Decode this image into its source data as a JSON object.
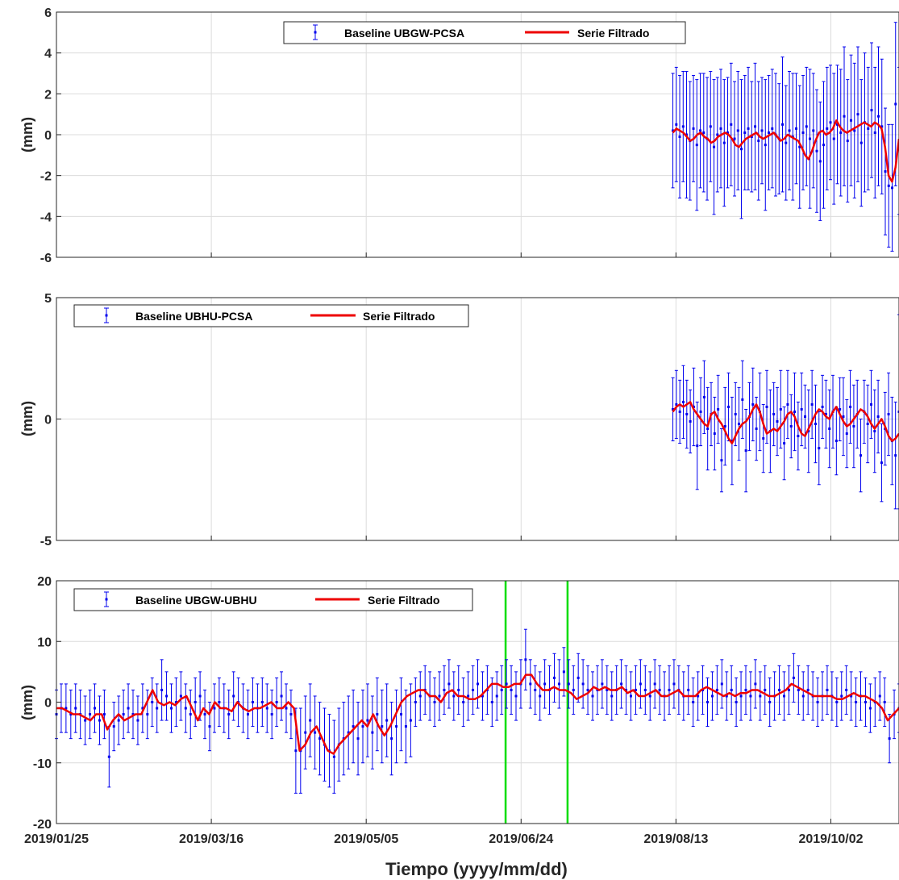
{
  "figure": {
    "xlabel": "Tiempo  (yyyy/mm/dd)"
  },
  "colors": {
    "data": "#0000ee",
    "filtered": "#ee0000",
    "marker_lines": "#00dd00",
    "grid": "#dcdcdc",
    "axes": "#262626"
  },
  "chart_data": [
    {
      "type": "line",
      "ylabel": "(mm)",
      "ylim": [
        -6,
        6
      ],
      "yticks": [
        -6,
        -4,
        -2,
        0,
        2,
        4,
        6
      ],
      "xlim": [
        "2019/01/25",
        "2019/10/24"
      ],
      "xticks": [
        "2019/01/25",
        "2019/03/16",
        "2019/05/05",
        "2019/06/24",
        "2019/08/13",
        "2019/10/02"
      ],
      "show_xticklabels": false,
      "grid": true,
      "legend": {
        "placement": "top-center",
        "entries": [
          "Baseline UBGW-PCSA",
          "Serie Filtrado"
        ]
      },
      "series": [
        {
          "name": "Baseline UBGW-PCSA",
          "kind": "errorbar",
          "x_start": "2019/08/12",
          "x_end": "2019/10/24",
          "values": [
            0.2,
            0.5,
            -0.1,
            0.4,
            0.0,
            -0.3,
            0.3,
            -0.5,
            0.2,
            0.1,
            -0.2,
            0.4,
            -0.6,
            0.0,
            0.3,
            -0.4,
            0.1,
            0.5,
            -0.2,
            0.2,
            -0.7,
            0.1,
            0.3,
            -0.1,
            0.4,
            -0.3,
            0.2,
            -0.5,
            0.1,
            0.3,
            0.0,
            -0.2,
            0.5,
            -0.4,
            0.2,
            -0.1,
            0.3,
            -0.6,
            0.1,
            0.4,
            -0.2,
            0.2,
            -0.8,
            -1.3,
            -0.5,
            0.3,
            0.6,
            -0.2,
            0.5,
            0.1,
            0.9,
            -0.3,
            0.7,
            0.2,
            1.0,
            -0.4,
            0.6,
            0.3,
            1.2,
            0.1,
            0.9,
            0.4,
            -1.8,
            -2.5,
            -2.6,
            1.5,
            -0.3
          ],
          "error": [
            2.8,
            2.8,
            3.0,
            2.7,
            3.1,
            2.9,
            2.6,
            3.2,
            2.8,
            2.9,
            3.0,
            2.7,
            3.3,
            2.8,
            2.9,
            3.1,
            2.7,
            3.0,
            2.8,
            2.9,
            3.4,
            2.8,
            3.0,
            2.7,
            3.1,
            2.9,
            2.6,
            3.2,
            2.8,
            2.9,
            3.0,
            2.7,
            3.3,
            2.8,
            2.9,
            3.1,
            2.7,
            3.0,
            2.8,
            2.9,
            3.4,
            2.8,
            3.0,
            2.9,
            3.1,
            3.0,
            2.8,
            3.2,
            2.9,
            3.1,
            3.4,
            3.0,
            3.2,
            3.3,
            3.3,
            3.1,
            3.4,
            3.0,
            3.3,
            3.2,
            3.4,
            3.3,
            3.1,
            3.0,
            3.1,
            4.0,
            3.6
          ]
        },
        {
          "name": "Serie Filtrado",
          "kind": "line",
          "x_start": "2019/08/12",
          "x_end": "2019/10/24",
          "values": [
            0.1,
            0.3,
            0.2,
            0.1,
            -0.1,
            -0.3,
            -0.2,
            0.0,
            0.1,
            -0.1,
            -0.2,
            -0.4,
            -0.3,
            -0.1,
            0.0,
            0.1,
            0.0,
            -0.2,
            -0.5,
            -0.6,
            -0.4,
            -0.2,
            -0.1,
            0.0,
            0.1,
            -0.1,
            -0.2,
            -0.1,
            0.0,
            0.1,
            -0.1,
            -0.3,
            -0.2,
            0.0,
            -0.1,
            -0.2,
            -0.3,
            -0.6,
            -1.0,
            -1.2,
            -0.8,
            -0.3,
            0.1,
            0.2,
            0.0,
            0.1,
            0.3,
            0.7,
            0.4,
            0.2,
            0.1,
            0.2,
            0.3,
            0.4,
            0.5,
            0.6,
            0.5,
            0.4,
            0.6,
            0.5,
            0.3,
            -0.6,
            -2.0,
            -2.3,
            -1.6,
            -0.2
          ]
        }
      ]
    },
    {
      "type": "line",
      "ylabel": "(mm)",
      "ylim": [
        -5,
        5
      ],
      "yticks": [
        -5,
        0,
        5
      ],
      "xlim": [
        "2019/01/25",
        "2019/10/24"
      ],
      "xticks": [
        "2019/01/25",
        "2019/03/16",
        "2019/05/05",
        "2019/06/24",
        "2019/08/13",
        "2019/10/02"
      ],
      "show_xticklabels": false,
      "grid": true,
      "legend": {
        "placement": "top-left",
        "entries": [
          "Baseline UBHU-PCSA",
          "Serie Filtrado"
        ]
      },
      "series": [
        {
          "name": "Baseline UBHU-PCSA",
          "kind": "errorbar",
          "x_start": "2019/08/12",
          "x_end": "2019/10/24",
          "values": [
            0.4,
            0.6,
            0.3,
            0.7,
            0.2,
            -0.1,
            0.5,
            -1.1,
            0.3,
            0.9,
            -0.4,
            0.2,
            -0.6,
            0.4,
            -1.7,
            -0.3,
            0.5,
            -0.9,
            0.2,
            -0.2,
            0.8,
            -1.3,
            0.1,
            0.6,
            -0.4,
            0.3,
            -0.8,
            0.5,
            -0.5,
            0.2,
            -0.1,
            0.4,
            -1.0,
            0.6,
            -0.3,
            0.3,
            -0.7,
            0.4,
            0.1,
            -0.5,
            0.6,
            -0.2,
            -1.2,
            0.5,
            0.2,
            -0.4,
            0.3,
            -0.9,
            0.4,
            0.1,
            -0.6,
            0.5,
            -0.3,
            0.2,
            -1.5,
            0.3,
            -0.2,
            0.6,
            -0.5,
            0.1,
            -1.8,
            -0.4,
            0.2,
            -0.9,
            -1.5,
            0.3
          ],
          "error": [
            1.3,
            1.4,
            1.3,
            1.5,
            1.4,
            1.3,
            1.6,
            1.8,
            1.4,
            1.5,
            1.7,
            1.3,
            1.5,
            1.4,
            1.3,
            1.6,
            1.4,
            1.8,
            1.3,
            1.5,
            1.6,
            1.7,
            1.4,
            1.5,
            1.3,
            1.6,
            1.4,
            1.5,
            1.7,
            1.3,
            1.4,
            1.6,
            1.5,
            1.4,
            1.3,
            1.6,
            1.4,
            1.5,
            1.3,
            1.7,
            1.4,
            1.6,
            1.5,
            1.3,
            1.4,
            1.6,
            1.5,
            1.4,
            1.3,
            1.6,
            1.4,
            1.5,
            1.7,
            1.4,
            1.5,
            1.3,
            1.6,
            1.4,
            1.7,
            1.5,
            1.6,
            1.5,
            1.7,
            1.8,
            2.2,
            4.0
          ]
        },
        {
          "name": "Serie Filtrado",
          "kind": "line",
          "x_start": "2019/08/12",
          "x_end": "2019/10/24",
          "values": [
            0.3,
            0.5,
            0.6,
            0.5,
            0.6,
            0.7,
            0.4,
            0.2,
            0.0,
            -0.2,
            -0.3,
            0.2,
            0.3,
            0.0,
            -0.2,
            -0.5,
            -0.8,
            -1.0,
            -0.7,
            -0.4,
            -0.2,
            -0.1,
            0.1,
            0.4,
            0.6,
            0.3,
            -0.2,
            -0.6,
            -0.5,
            -0.4,
            -0.5,
            -0.3,
            -0.1,
            0.2,
            0.3,
            0.1,
            -0.3,
            -0.6,
            -0.7,
            -0.4,
            -0.1,
            0.2,
            0.4,
            0.3,
            0.1,
            0.0,
            0.3,
            0.5,
            0.2,
            -0.1,
            -0.3,
            -0.2,
            0.0,
            0.2,
            0.4,
            0.3,
            0.1,
            -0.2,
            -0.4,
            -0.2,
            0.0,
            -0.3,
            -0.7,
            -0.9,
            -0.8,
            -0.6
          ]
        }
      ]
    },
    {
      "type": "line",
      "ylabel": "(mm)",
      "ylim": [
        -20,
        20
      ],
      "yticks": [
        -20,
        -10,
        0,
        10,
        20
      ],
      "xlim": [
        "2019/01/25",
        "2019/10/24"
      ],
      "xticks": [
        "2019/01/25",
        "2019/03/16",
        "2019/05/05",
        "2019/06/24",
        "2019/08/13",
        "2019/10/02"
      ],
      "show_xticklabels": true,
      "grid": true,
      "legend": {
        "placement": "top-left",
        "entries": [
          "Baseline UBGW-UBHU",
          "Serie Filtrado"
        ]
      },
      "vlines": [
        "2019/06/19",
        "2019/07/09"
      ],
      "series": [
        {
          "name": "Baseline UBGW-UBHU",
          "kind": "errorbar",
          "x_start": "2019/01/25",
          "x_end": "2019/10/24",
          "values": [
            -2,
            -1,
            -1,
            -2,
            -1,
            -2,
            -3,
            -2,
            -1,
            -3,
            -2,
            -9,
            -4,
            -3,
            -2,
            -1,
            -2,
            -3,
            -1,
            -2,
            0,
            -1,
            2,
            1,
            -1,
            0,
            1,
            -1,
            -2,
            0,
            1,
            -2,
            -4,
            -1,
            0,
            -1,
            -2,
            1,
            0,
            -1,
            -2,
            0,
            -1,
            0,
            -1,
            -2,
            0,
            1,
            -1,
            -2,
            -8,
            -8,
            -5,
            -3,
            -5,
            -6,
            -7,
            -8,
            -9,
            -7,
            -6,
            -5,
            -4,
            -6,
            -4,
            -3,
            -5,
            -2,
            -4,
            -3,
            -6,
            -4,
            -2,
            -4,
            -3,
            0,
            1,
            2,
            1,
            0,
            1,
            2,
            3,
            1,
            2,
            0,
            1,
            2,
            3,
            1,
            2,
            0,
            1,
            2,
            3,
            2,
            1,
            3,
            7,
            3,
            2,
            1,
            3,
            2,
            4,
            3,
            5,
            3,
            2,
            4,
            3,
            2,
            1,
            2,
            3,
            2,
            1,
            2,
            3,
            2,
            1,
            2,
            3,
            2,
            1,
            3,
            2,
            1,
            2,
            3,
            2,
            1,
            2,
            0,
            1,
            2,
            0,
            1,
            2,
            3,
            1,
            2,
            0,
            1,
            2,
            1,
            3,
            1,
            2,
            0,
            1,
            2,
            1,
            2,
            4,
            2,
            1,
            2,
            1,
            0,
            1,
            2,
            1,
            0,
            1,
            2,
            1,
            0,
            1,
            0,
            -1,
            0,
            1,
            0,
            -6,
            -2,
            -1
          ],
          "error": [
            4,
            4,
            4,
            4,
            4,
            4,
            4,
            4,
            4,
            4,
            4,
            5,
            4,
            4,
            4,
            4,
            4,
            4,
            4,
            4,
            4,
            4,
            5,
            4,
            4,
            4,
            4,
            4,
            4,
            4,
            4,
            4,
            4,
            4,
            4,
            4,
            4,
            4,
            4,
            4,
            4,
            4,
            4,
            4,
            4,
            4,
            4,
            4,
            4,
            4,
            7,
            7,
            6,
            6,
            6,
            6,
            6,
            6,
            6,
            6,
            6,
            6,
            6,
            6,
            6,
            6,
            6,
            6,
            6,
            6,
            6,
            6,
            6,
            6,
            6,
            4,
            4,
            4,
            4,
            4,
            4,
            4,
            4,
            4,
            4,
            4,
            4,
            4,
            4,
            4,
            4,
            4,
            4,
            4,
            4,
            4,
            4,
            4,
            5,
            4,
            4,
            4,
            4,
            4,
            4,
            4,
            4,
            4,
            4,
            4,
            4,
            4,
            4,
            4,
            4,
            4,
            4,
            4,
            4,
            4,
            4,
            4,
            4,
            4,
            4,
            4,
            4,
            4,
            4,
            4,
            4,
            4,
            4,
            4,
            4,
            4,
            4,
            4,
            4,
            4,
            4,
            4,
            4,
            4,
            4,
            4,
            4,
            4,
            4,
            4,
            4,
            4,
            4,
            4,
            4,
            4,
            4,
            4,
            4,
            4,
            4,
            4,
            4,
            4,
            4,
            4,
            4,
            4,
            4,
            4,
            4,
            4,
            4,
            4,
            4,
            4,
            4
          ]
        },
        {
          "name": "Serie Filtrado",
          "kind": "line",
          "x_start": "2019/01/25",
          "x_end": "2019/10/24",
          "values": [
            -1,
            -1,
            -1.5,
            -2,
            -2,
            -2.5,
            -3,
            -2,
            -2,
            -4.5,
            -3,
            -2,
            -3,
            -2.5,
            -2,
            -2,
            0,
            2,
            0,
            -0.5,
            0,
            -0.5,
            0.5,
            1,
            -1,
            -3,
            -1,
            -2,
            0,
            -1,
            -1,
            -1.5,
            0,
            -1,
            -1.5,
            -1,
            -1,
            -0.5,
            0,
            -1,
            -1,
            0,
            -1,
            -8,
            -7,
            -5,
            -4,
            -6,
            -8,
            -8.5,
            -7,
            -6,
            -5,
            -4,
            -3,
            -4,
            -2,
            -4,
            -5.5,
            -4,
            -2,
            0,
            1,
            1.5,
            2,
            2,
            1,
            1,
            0,
            1.5,
            2,
            1,
            1,
            0.5,
            0.5,
            1,
            2,
            3,
            3,
            2.5,
            2.5,
            3,
            3,
            4.5,
            4.5,
            3,
            2,
            2,
            2.5,
            2,
            2,
            1.5,
            0.5,
            1,
            1.5,
            2.5,
            2,
            2.5,
            2,
            2,
            2.5,
            1.5,
            2,
            1,
            1,
            1.5,
            2,
            1,
            1,
            1.5,
            2,
            1,
            1,
            1,
            2,
            2.5,
            2,
            1.5,
            1,
            1.5,
            1,
            1.5,
            1.5,
            2,
            2,
            1.5,
            1,
            1,
            1.5,
            2,
            3,
            2.5,
            2,
            1.5,
            1,
            1,
            1,
            1,
            0.5,
            0.5,
            1,
            1.5,
            1,
            1,
            0.5,
            0,
            -1,
            -3,
            -2,
            -1
          ]
        }
      ]
    }
  ]
}
